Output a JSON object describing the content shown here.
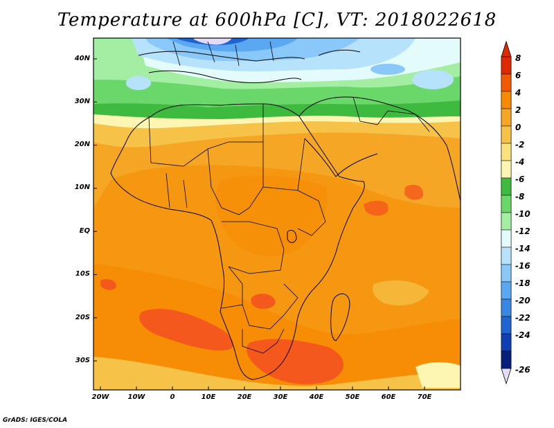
{
  "title": "Temperature at 600hPa [C], VT: 2018022618",
  "credit": "GrADS: IGES/COLA",
  "map": {
    "lat_ticks": [
      "40N",
      "30N",
      "20N",
      "10N",
      "EQ",
      "10S",
      "20S",
      "30S"
    ],
    "lon_ticks": [
      "20W",
      "10W",
      "0",
      "10E",
      "20E",
      "30E",
      "40E",
      "50E",
      "60E",
      "70E"
    ],
    "lat_range": [
      -36,
      45
    ],
    "lon_range": [
      -22,
      80
    ]
  },
  "colorbar": {
    "labels": [
      "8",
      "6",
      "4",
      "2",
      "0",
      "-2",
      "-4",
      "-6",
      "-8",
      "-10",
      "-12",
      "-14",
      "-16",
      "-18",
      "-20",
      "-22",
      "-24",
      "-26"
    ],
    "colors": [
      "#dd2a00",
      "#f25a00",
      "#f68a00",
      "#f4a624",
      "#f6c348",
      "#f9e17e",
      "#fdf6b2",
      "#3ebb3e",
      "#6ad76a",
      "#a4eea4",
      "#e4fbfb",
      "#b6e3fb",
      "#8ac8f9",
      "#5aa7f2",
      "#3a87e2",
      "#2064cf",
      "#0f3fb3",
      "#0a1f7a"
    ],
    "top_color": "#dd2a00",
    "bottom_color": "#e4dcf7"
  },
  "palette": {
    "deep_orange": "#f5581c",
    "orange": "#f68a00",
    "light_orange": "#f4a624",
    "yellow": "#f9e17e",
    "pale_yellow": "#fdf6b2",
    "green": "#3ebb3e",
    "light_green": "#6ad76a",
    "pale_green": "#a4eea4",
    "pale_cyan": "#e4fbfb",
    "light_blue": "#b6e3fb",
    "blue": "#8ac8f9",
    "mid_blue": "#5aa7f2",
    "dark_blue": "#2064cf",
    "lavender": "#e4dcf7"
  }
}
